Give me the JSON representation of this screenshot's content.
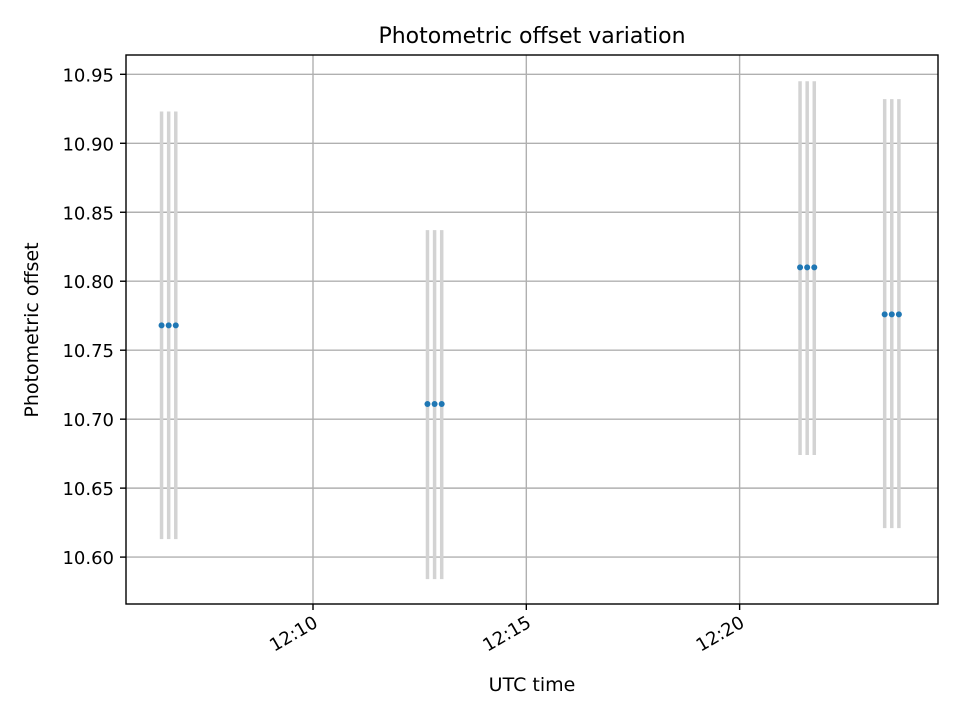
{
  "chart_data": {
    "type": "scatter",
    "title": "Photometric offset variation",
    "xlabel": "UTC time",
    "ylabel": "Photometric offset",
    "x_ticks": [
      "12:10",
      "12:15",
      "12:20"
    ],
    "y_ticks": [
      "10.60",
      "10.65",
      "10.70",
      "10.75",
      "10.80",
      "10.85",
      "10.90",
      "10.95"
    ],
    "xlim": [
      "12:05:37",
      "12:24:39"
    ],
    "ylim": [
      10.566,
      10.964
    ],
    "grid": true,
    "marker_color": "#1f77b4",
    "errorbar_color": "#d3d3d3",
    "groups": [
      {
        "times": [
          "12:06:27",
          "12:06:37",
          "12:06:47"
        ],
        "y": 10.768,
        "err_low": 10.613,
        "err_high": 10.923
      },
      {
        "times": [
          "12:12:41",
          "12:12:51",
          "12:13:01"
        ],
        "y": 10.711,
        "err_low": 10.584,
        "err_high": 10.837
      },
      {
        "times": [
          "12:21:25",
          "12:21:35",
          "12:21:45"
        ],
        "y": 10.81,
        "err_low": 10.674,
        "err_high": 10.945
      },
      {
        "times": [
          "12:23:24",
          "12:23:34",
          "12:23:44"
        ],
        "y": 10.776,
        "err_low": 10.621,
        "err_high": 10.932
      }
    ]
  }
}
